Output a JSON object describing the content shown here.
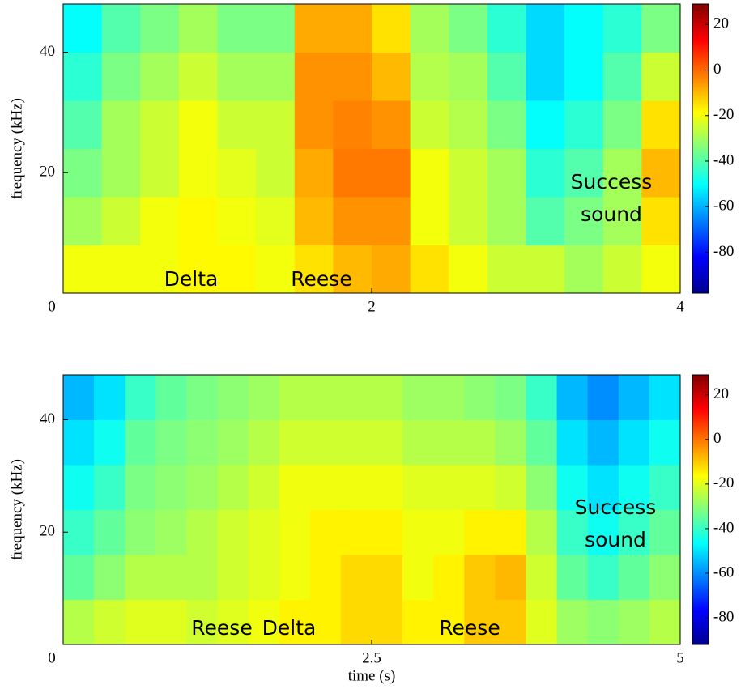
{
  "chart_data": [
    {
      "type": "heatmap",
      "ylabel": "frequency (kHz)",
      "colormap": "jet",
      "xlim": [
        0,
        4
      ],
      "xticks": [
        0,
        2,
        4
      ],
      "ylim": [
        0,
        48
      ],
      "yticks": [
        20,
        40
      ],
      "x_bins": [
        0,
        0.25,
        0.5,
        0.75,
        1,
        1.25,
        1.5,
        1.75,
        2,
        2.25,
        2.5,
        2.75,
        3,
        3.25,
        3.5,
        3.75,
        4
      ],
      "y_bins": [
        0,
        8,
        16,
        24,
        32,
        40,
        48
      ],
      "values": [
        [
          -20,
          -20,
          -20,
          -18,
          -18,
          -20,
          -15,
          -10,
          -8,
          -15,
          -20,
          -25,
          -25,
          -30,
          -25,
          -20
        ],
        [
          -30,
          -25,
          -20,
          -18,
          -20,
          -22,
          -10,
          -5,
          -5,
          -20,
          -25,
          -30,
          -40,
          -35,
          -30,
          -15
        ],
        [
          -35,
          -30,
          -25,
          -20,
          -22,
          -25,
          -8,
          -2,
          -2,
          -20,
          -25,
          -30,
          -45,
          -40,
          -30,
          -10
        ],
        [
          -40,
          -30,
          -25,
          -20,
          -25,
          -25,
          -5,
          -3,
          -5,
          -25,
          -28,
          -35,
          -50,
          -45,
          -35,
          -15
        ],
        [
          -45,
          -35,
          -30,
          -25,
          -30,
          -30,
          -5,
          -5,
          -10,
          -28,
          -30,
          -40,
          -55,
          -50,
          -40,
          -25
        ],
        [
          -50,
          -40,
          -35,
          -30,
          -35,
          -35,
          -8,
          -8,
          -15,
          -30,
          -35,
          -45,
          -55,
          -50,
          -45,
          -35
        ]
      ],
      "clim": [
        -98,
        29
      ],
      "cticks": [
        20,
        0,
        -20,
        -40,
        -60,
        -80
      ],
      "annotations": [
        "Delta",
        "Reese",
        "Success sound"
      ]
    },
    {
      "type": "heatmap",
      "xlabel": "time (s)",
      "ylabel": "frequency (kHz)",
      "colormap": "jet",
      "xlim": [
        0,
        5
      ],
      "xticks": [
        0,
        2.5,
        5
      ],
      "ylim": [
        0,
        48
      ],
      "yticks": [
        20,
        40
      ],
      "x_bins": [
        0,
        0.25,
        0.5,
        0.75,
        1,
        1.25,
        1.5,
        1.75,
        2,
        2.25,
        2.5,
        2.75,
        3,
        3.25,
        3.5,
        3.75,
        4,
        4.25,
        4.5,
        4.75,
        5
      ],
      "y_bins": [
        0,
        8,
        16,
        24,
        32,
        40,
        48
      ],
      "values": [
        [
          -25,
          -22,
          -20,
          -20,
          -22,
          -20,
          -18,
          -15,
          -15,
          -12,
          -12,
          -15,
          -15,
          -10,
          -10,
          -20,
          -28,
          -30,
          -28,
          -25
        ],
        [
          -35,
          -30,
          -25,
          -25,
          -25,
          -22,
          -20,
          -18,
          -15,
          -12,
          -12,
          -18,
          -15,
          -10,
          -8,
          -22,
          -35,
          -40,
          -35,
          -30
        ],
        [
          -40,
          -35,
          -30,
          -28,
          -25,
          -22,
          -20,
          -18,
          -15,
          -15,
          -15,
          -18,
          -18,
          -15,
          -15,
          -25,
          -40,
          -45,
          -40,
          -35
        ],
        [
          -45,
          -40,
          -32,
          -30,
          -28,
          -25,
          -22,
          -18,
          -18,
          -18,
          -18,
          -20,
          -20,
          -20,
          -22,
          -30,
          -45,
          -50,
          -45,
          -40
        ],
        [
          -50,
          -45,
          -35,
          -32,
          -30,
          -28,
          -25,
          -22,
          -22,
          -22,
          -22,
          -25,
          -25,
          -25,
          -28,
          -35,
          -50,
          -55,
          -50,
          -45
        ],
        [
          -55,
          -50,
          -40,
          -35,
          -32,
          -30,
          -28,
          -25,
          -25,
          -25,
          -25,
          -28,
          -28,
          -30,
          -32,
          -40,
          -55,
          -60,
          -55,
          -50
        ]
      ],
      "clim": [
        -92,
        29
      ],
      "cticks": [
        20,
        0,
        -20,
        -40,
        -60,
        -80
      ],
      "annotations": [
        "Reese",
        "Delta",
        "Reese",
        "Success sound"
      ]
    }
  ]
}
